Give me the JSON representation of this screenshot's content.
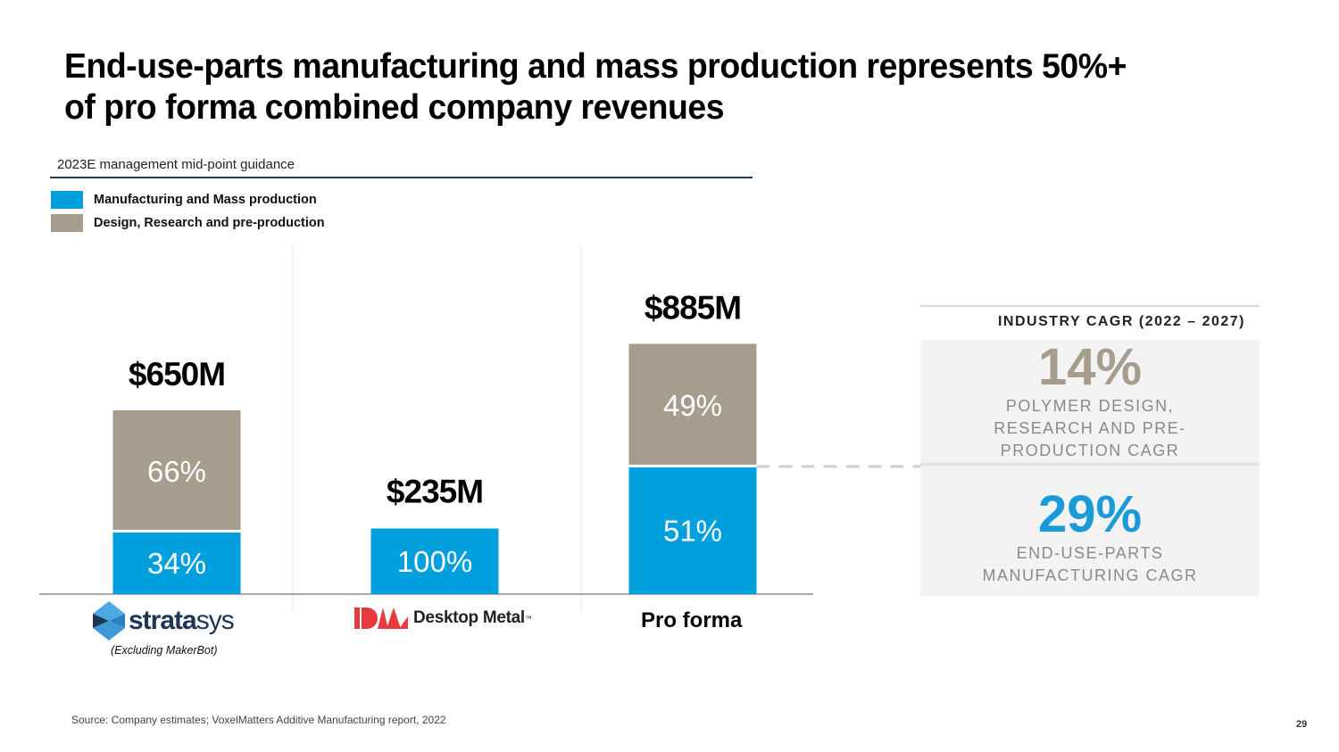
{
  "slide": {
    "title_line1": "End-use-parts manufacturing and mass production represents 50%+",
    "title_line2": "of pro forma combined company revenues",
    "subtitle": "2023E management mid-point guidance",
    "source": "Source: Company estimates; VoxelMatters Additive Manufacturing report, 2022",
    "page_number": "29"
  },
  "colors": {
    "manufacturing": "#009fde",
    "design": "#a79d8f",
    "cagr_design": "#a79d8f",
    "cagr_manufacturing": "#1a9ad6",
    "dm_red": "#e8393e",
    "stratasys_blue": "#1d3557"
  },
  "logos": {
    "stratasys": {
      "icon": "stratasys-logo-icon",
      "wordmark_bold": "strata",
      "wordmark_light": "sys",
      "note": "(Excluding MakerBot)"
    },
    "desktop_metal": {
      "icon": "desktop-metal-logo-icon",
      "wordmark": "Desktop Metal",
      "tm": "™"
    },
    "proforma": "Pro forma"
  },
  "cagr": {
    "header": "INDUSTRY CAGR (2022 – 2027)",
    "items": [
      {
        "value": "14%",
        "label_lines": [
          "POLYMER DESIGN,",
          "RESEARCH AND PRE-",
          "PRODUCTION CAGR"
        ]
      },
      {
        "value": "29%",
        "label_lines": [
          "END-USE-PARTS",
          "MANUFACTURING CAGR"
        ]
      }
    ]
  },
  "chart_data": {
    "type": "bar",
    "stacked": true,
    "title": "2023E management mid-point guidance",
    "categories": [
      "Stratasys (Excluding MakerBot)",
      "Desktop Metal",
      "Pro forma"
    ],
    "totals": [
      650,
      235,
      885
    ],
    "total_labels": [
      "$650M",
      "$235M",
      "$885M"
    ],
    "unit": "$M",
    "series": [
      {
        "name": "Manufacturing and Mass production",
        "values_pct": [
          34,
          100,
          51
        ],
        "labels": [
          "34%",
          "100%",
          "51%"
        ]
      },
      {
        "name": "Design, Research and pre-production",
        "values_pct": [
          66,
          0,
          49
        ],
        "labels": [
          "66%",
          "",
          "49%"
        ]
      }
    ],
    "legend": [
      "Manufacturing and Mass production",
      "Design, Research and pre-production"
    ],
    "legend_position": "top-left",
    "xlabel": "",
    "ylabel": "",
    "grid": false
  }
}
